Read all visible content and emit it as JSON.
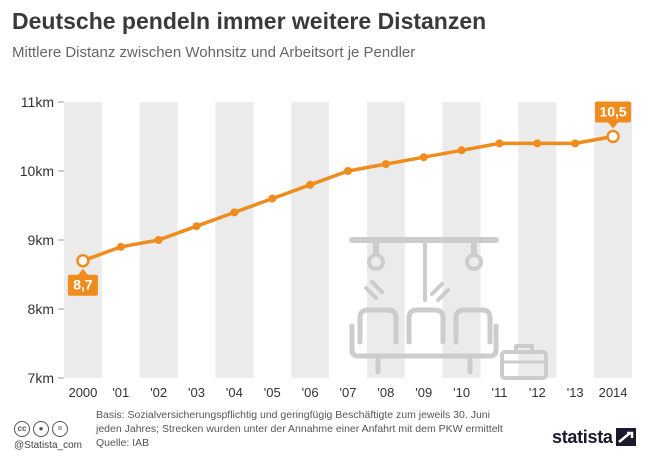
{
  "header": {
    "title": "Deutsche pendeln immer weitere Distanzen",
    "subtitle": "Mittlere Distanz zwischen Wohnsitz und Arbeitsort je Pendler"
  },
  "chart_data": {
    "type": "line",
    "title": "Deutsche pendeln immer weitere Distanzen",
    "subtitle": "Mittlere Distanz zwischen Wohnsitz und Arbeitsort je Pendler",
    "categories": [
      "2000",
      "'01",
      "'02",
      "'03",
      "'04",
      "'05",
      "'06",
      "'07",
      "'08",
      "'09",
      "'10",
      "'11",
      "'12",
      "'13",
      "2014"
    ],
    "series": [
      {
        "values": [
          8.7,
          8.9,
          9.0,
          9.2,
          9.4,
          9.6,
          9.8,
          10.0,
          10.1,
          10.2,
          10.3,
          10.4,
          10.4,
          10.4,
          10.5
        ]
      }
    ],
    "ylim": [
      7,
      11
    ],
    "yticks": [
      7,
      8,
      9,
      10,
      11
    ],
    "ytick_labels": [
      "7km",
      "8km",
      "9km",
      "10km",
      "11km"
    ],
    "annotations": [
      {
        "index": 0,
        "label": "8,7"
      },
      {
        "index": 14,
        "label": "10,5"
      }
    ],
    "colors": {
      "line": "#f08c1e",
      "band": "#ebebeb",
      "illustration": "#cccccc"
    }
  },
  "footer": {
    "basis_line1": "Basis: Sozialversicherungspflichtig und geringfügig Beschäftigte zum jeweils 30. Juni",
    "basis_line2": "jeden Jahres; Strecken wurden unter der Annahme einer Anfahrt mit dem PKW ermittelt",
    "source": "Quelle: IAB",
    "copyright": "@Statista_com",
    "brand": "statista",
    "license_icons": [
      "cc-icon",
      "by-icon",
      "nd-icon"
    ]
  }
}
